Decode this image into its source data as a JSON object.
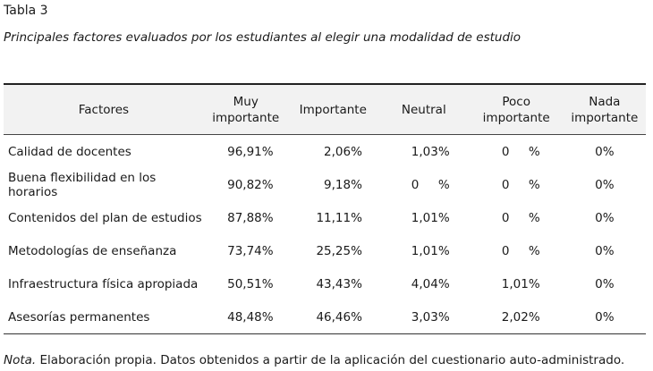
{
  "table_label": "Tabla 3",
  "caption": "Principales factores evaluados por los estudiantes al elegir una modalidad de estudio",
  "headers": {
    "factor": "Factores",
    "muy_importante_1": "Muy",
    "muy_importante_2": "importante",
    "importante": "Importante",
    "neutral": "Neutral",
    "poco_importante_1": "Poco",
    "poco_importante_2": "importante",
    "nada_importante_1": "Nada",
    "nada_importante_2": "importante"
  },
  "rows": [
    {
      "factor": "Calidad de docentes",
      "muy": "96,91%",
      "imp": "2,06%",
      "neutral": "1,03%",
      "poco": "0     %",
      "nada": "0%"
    },
    {
      "factor": "Buena flexibilidad en los horarios",
      "muy": "90,82%",
      "imp": "9,18%",
      "neutral": "0     %",
      "poco": "0     %",
      "nada": "0%"
    },
    {
      "factor": "Contenidos del plan de estudios",
      "muy": "87,88%",
      "imp": "11,11%",
      "neutral": "1,01%",
      "poco": "0     %",
      "nada": "0%"
    },
    {
      "factor": "Metodologías de enseñanza",
      "muy": "73,74%",
      "imp": "25,25%",
      "neutral": "1,01%",
      "poco": "0     %",
      "nada": "0%"
    },
    {
      "factor": "Infraestructura física apropiada",
      "muy": "50,51%",
      "imp": "43,43%",
      "neutral": "4,04%",
      "poco": "1,01%",
      "nada": "0%"
    },
    {
      "factor": "Asesorías permanentes",
      "muy": "48,48%",
      "imp": "46,46%",
      "neutral": "3,03%",
      "poco": "2,02%",
      "nada": "0%"
    }
  ],
  "note": {
    "label": "Nota.",
    "text": " Elaboración propia. Datos obtenidos a partir de la aplicación del cuestionario auto-administrado."
  }
}
